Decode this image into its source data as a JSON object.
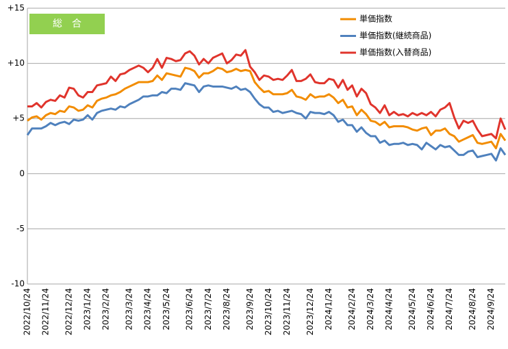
{
  "chart_data": {
    "type": "line",
    "annotation": "総　合",
    "categories": [
      "2022/10/24",
      null,
      null,
      null,
      "2022/11/24",
      null,
      null,
      null,
      null,
      "2022/12/24",
      null,
      null,
      null,
      "2023/1/24",
      null,
      null,
      null,
      "2023/2/24",
      null,
      null,
      null,
      null,
      "2023/3/24",
      null,
      null,
      null,
      "2023/4/24",
      null,
      null,
      null,
      "2023/5/24",
      null,
      null,
      null,
      null,
      "2023/6/24",
      null,
      null,
      null,
      "2023/7/24",
      null,
      null,
      null,
      "2023/8/24",
      null,
      null,
      null,
      null,
      "2023/9/24",
      null,
      null,
      null,
      "2023/10/24",
      null,
      null,
      null,
      "2023/11/24",
      null,
      null,
      null,
      null,
      "2023/12/24",
      null,
      null,
      null,
      "2024/1/24",
      null,
      null,
      null,
      null,
      "2024/2/24",
      null,
      null,
      null,
      "2024/3/24",
      null,
      null,
      null,
      "2024/4/24",
      null,
      null,
      null,
      null,
      "2024/5/24",
      null,
      null,
      null,
      "2024/6/24",
      null,
      null,
      null,
      "2024/7/24",
      null,
      null,
      null,
      null,
      "2024/8/24",
      null,
      null,
      null,
      "2024/9/24",
      null,
      null,
      null
    ],
    "series": [
      {
        "name": "単価指数",
        "color": "#f28c00",
        "values": [
          4.8,
          5.1,
          5.2,
          4.9,
          5.3,
          5.5,
          5.4,
          5.7,
          5.6,
          6.1,
          6.0,
          5.7,
          5.8,
          6.2,
          6.0,
          6.6,
          6.8,
          6.9,
          7.1,
          7.2,
          7.4,
          7.7,
          7.9,
          8.1,
          8.3,
          8.3,
          8.3,
          8.4,
          8.9,
          8.5,
          9.1,
          9.0,
          8.9,
          8.8,
          9.6,
          9.5,
          9.3,
          8.7,
          9.1,
          9.1,
          9.3,
          9.6,
          9.5,
          9.2,
          9.3,
          9.5,
          9.3,
          9.4,
          9.3,
          8.3,
          7.8,
          7.4,
          7.5,
          7.2,
          7.2,
          7.2,
          7.3,
          7.6,
          7.0,
          6.9,
          6.7,
          7.2,
          6.9,
          7.0,
          7.0,
          7.2,
          6.9,
          6.4,
          6.7,
          6.0,
          6.1,
          5.3,
          5.8,
          5.4,
          4.8,
          4.7,
          4.4,
          4.7,
          4.2,
          4.3,
          4.3,
          4.3,
          4.2,
          4.0,
          3.9,
          4.1,
          4.2,
          3.5,
          3.9,
          3.9,
          4.1,
          3.6,
          3.4,
          2.9,
          3.1,
          3.3,
          3.5,
          2.8,
          2.7,
          2.8,
          2.9,
          2.3,
          3.6,
          3.0
        ]
      },
      {
        "name": "単価指数(継続商品)",
        "color": "#4f81bd",
        "values": [
          3.5,
          4.1,
          4.1,
          4.1,
          4.3,
          4.6,
          4.4,
          4.6,
          4.7,
          4.5,
          4.9,
          4.8,
          4.9,
          5.3,
          4.9,
          5.5,
          5.7,
          5.8,
          5.9,
          5.8,
          6.1,
          6.0,
          6.3,
          6.5,
          6.7,
          7.0,
          7.0,
          7.1,
          7.1,
          7.4,
          7.3,
          7.7,
          7.7,
          7.6,
          8.2,
          8.1,
          8.0,
          7.4,
          7.9,
          8.0,
          7.9,
          7.9,
          7.9,
          7.8,
          7.7,
          7.9,
          7.6,
          7.7,
          7.4,
          6.8,
          6.3,
          6.0,
          6.0,
          5.6,
          5.7,
          5.5,
          5.6,
          5.7,
          5.5,
          5.4,
          5.0,
          5.6,
          5.5,
          5.5,
          5.4,
          5.6,
          5.3,
          4.7,
          4.9,
          4.4,
          4.4,
          3.8,
          4.2,
          3.7,
          3.4,
          3.4,
          2.8,
          3.0,
          2.6,
          2.7,
          2.7,
          2.8,
          2.6,
          2.7,
          2.6,
          2.2,
          2.8,
          2.5,
          2.2,
          2.6,
          2.4,
          2.5,
          2.1,
          1.7,
          1.7,
          2.0,
          2.1,
          1.5,
          1.6,
          1.7,
          1.8,
          1.2,
          2.3,
          1.7
        ]
      },
      {
        "name": "単価指数(入替商品)",
        "color": "#e0342c",
        "values": [
          6.1,
          6.1,
          6.4,
          6.0,
          6.5,
          6.7,
          6.6,
          7.1,
          6.9,
          7.8,
          7.7,
          7.1,
          6.9,
          7.4,
          7.4,
          8.0,
          8.1,
          8.2,
          8.8,
          8.4,
          9.0,
          9.1,
          9.4,
          9.6,
          9.8,
          9.6,
          9.2,
          9.6,
          10.4,
          9.6,
          10.5,
          10.4,
          10.2,
          10.3,
          10.9,
          11.1,
          10.7,
          9.9,
          10.4,
          10.0,
          10.5,
          10.7,
          10.9,
          10.0,
          10.3,
          10.8,
          10.7,
          11.2,
          9.7,
          9.2,
          8.5,
          8.9,
          8.8,
          8.5,
          8.6,
          8.5,
          8.9,
          9.4,
          8.4,
          8.4,
          8.6,
          9.0,
          8.3,
          8.2,
          8.2,
          8.6,
          8.5,
          7.8,
          8.5,
          7.6,
          8.0,
          7.0,
          7.7,
          7.3,
          6.3,
          6.0,
          5.5,
          6.2,
          5.3,
          5.6,
          5.3,
          5.4,
          5.2,
          5.5,
          5.3,
          5.5,
          5.3,
          5.6,
          5.2,
          5.8,
          6.0,
          6.4,
          5.1,
          4.1,
          4.8,
          4.6,
          4.8,
          4.0,
          3.4,
          3.5,
          3.6,
          3.2,
          5.0,
          4.0
        ]
      }
    ],
    "ylim": [
      -10,
      15
    ],
    "yticks": [
      {
        "value": -10,
        "label": "-10"
      },
      {
        "value": -5,
        "label": "-5"
      },
      0,
      {
        "value": 5,
        "label": "+5"
      },
      {
        "value": 10,
        "label": "+10"
      },
      {
        "value": 15,
        "label": "+15"
      }
    ],
    "grid": true,
    "legend": "upper right",
    "annotation_color": "#92d050"
  }
}
